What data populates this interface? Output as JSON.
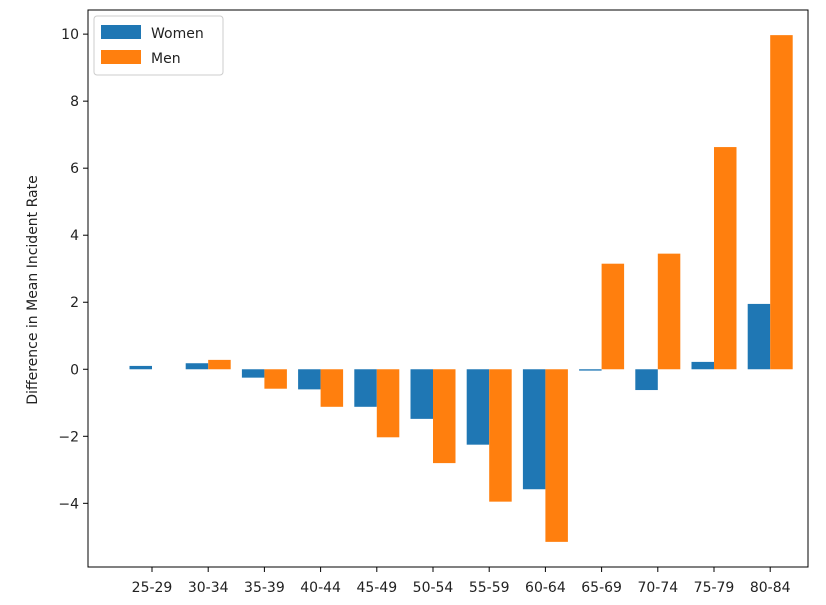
{
  "chart_data": {
    "type": "bar",
    "categories": [
      "25-29",
      "30-34",
      "35-39",
      "40-44",
      "45-49",
      "50-54",
      "55-59",
      "60-64",
      "65-69",
      "70-74",
      "75-79",
      "80-84"
    ],
    "series": [
      {
        "name": "Women",
        "color": "#1f77b4",
        "values": [
          0.1,
          0.18,
          -0.25,
          -0.6,
          -1.12,
          -1.48,
          -2.25,
          -3.58,
          -0.04,
          -0.62,
          0.22,
          1.95
        ]
      },
      {
        "name": "Men",
        "color": "#ff7f0e",
        "values": [
          0.0,
          0.28,
          -0.58,
          -1.12,
          -2.03,
          -2.8,
          -3.95,
          -5.15,
          3.15,
          3.45,
          6.63,
          9.97
        ]
      }
    ],
    "title": "",
    "xlabel": "",
    "ylabel": "Difference in Mean Incident Rate",
    "ylim": [
      -5.9,
      10.72
    ],
    "yticks": [
      -4,
      -2,
      0,
      2,
      4,
      6,
      8,
      10
    ],
    "ytick_labels": [
      "−4",
      "−2",
      "0",
      "2",
      "4",
      "6",
      "8",
      "10"
    ],
    "grid": false,
    "legend_position": "upper-left"
  }
}
